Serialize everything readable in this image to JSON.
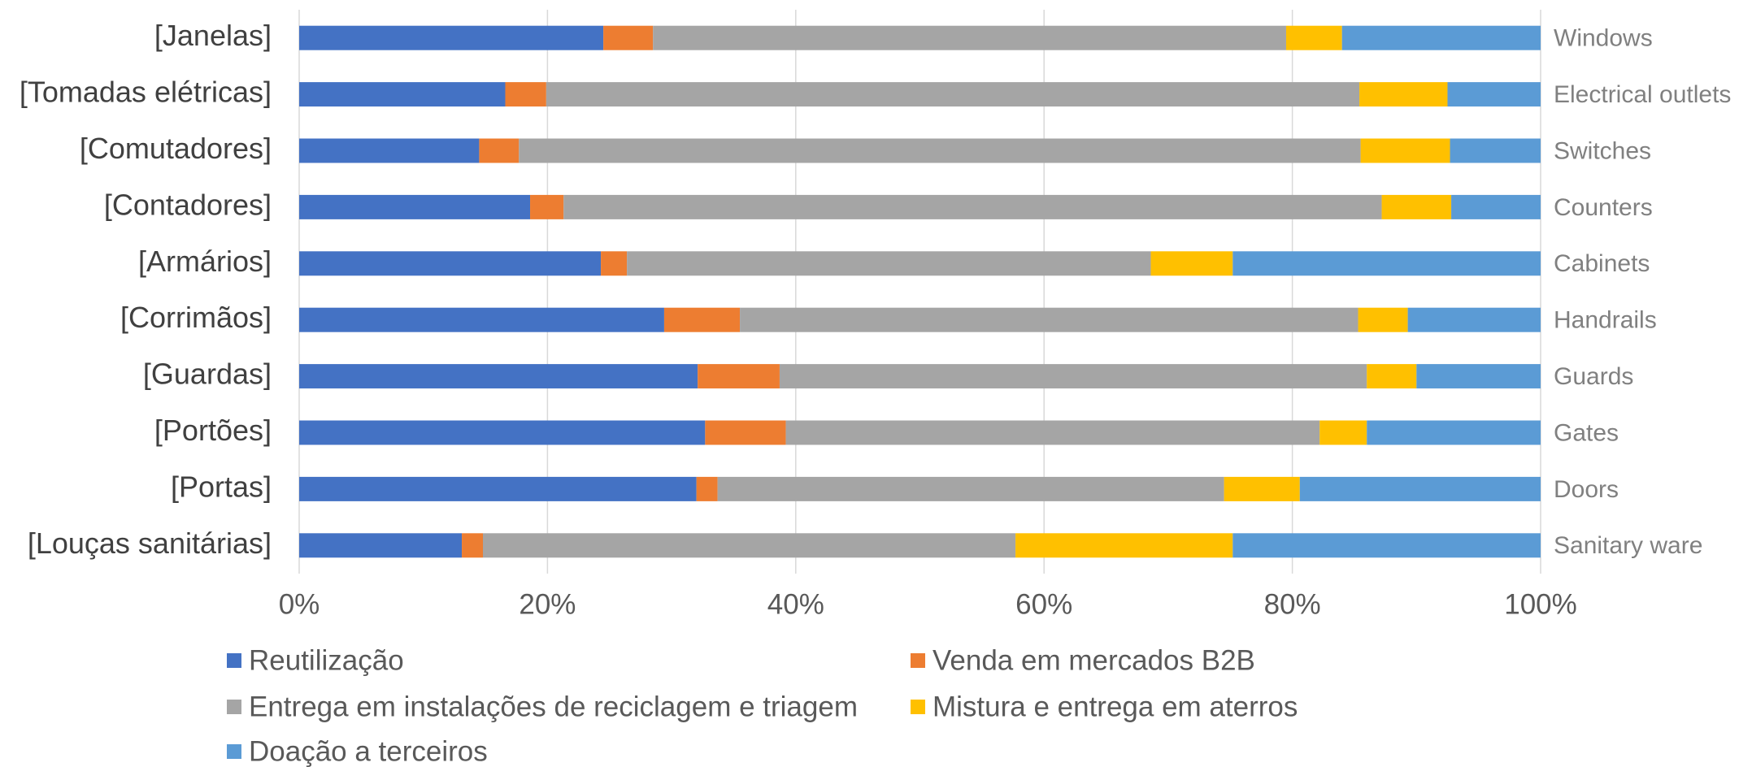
{
  "chart_data": {
    "type": "stacked_bar_horizontal",
    "categories": [
      "[Janelas]",
      "[Tomadas elétricas]",
      "[Comutadores]",
      "[Contadores]",
      "[Armários]",
      "[Corrimãos]",
      "[Guardas]",
      "[Portões]",
      "[Portas]",
      "[Louças sanitárias]"
    ],
    "right_labels": [
      "Windows",
      "Electrical outlets",
      "Switches",
      "Counters",
      "Cabinets",
      "Handrails",
      "Guards",
      "Gates",
      "Doors",
      "Sanitary ware"
    ],
    "series": [
      {
        "name": "Reutilização",
        "color": "#4472c4",
        "values": [
          24.5,
          16.6,
          14.5,
          18.6,
          24.3,
          29.4,
          32.1,
          32.7,
          32.0,
          13.1
        ]
      },
      {
        "name": "Venda em mercados B2B",
        "color": "#ed7d31",
        "values": [
          4.0,
          3.3,
          3.2,
          2.7,
          2.1,
          6.1,
          6.6,
          6.5,
          1.7,
          1.7
        ]
      },
      {
        "name": "Entrega em instalações de reciclagem e triagem",
        "color": "#a5a5a5",
        "values": [
          51.0,
          65.5,
          67.8,
          65.9,
          42.2,
          49.8,
          47.3,
          43.0,
          40.8,
          42.9
        ]
      },
      {
        "name": "Mistura e entrega em aterros",
        "color": "#ffc000",
        "values": [
          4.5,
          7.1,
          7.2,
          5.6,
          6.6,
          4.0,
          4.0,
          3.8,
          6.1,
          17.5
        ]
      },
      {
        "name": "Doação a terceiros",
        "color": "#5b9bd5",
        "values": [
          16.0,
          7.5,
          7.3,
          7.2,
          24.8,
          10.7,
          10.0,
          14.0,
          19.4,
          24.8
        ]
      }
    ],
    "xlim": [
      0,
      100
    ],
    "xticks": [
      {
        "value": 0,
        "label": "0%"
      },
      {
        "value": 20,
        "label": "20%"
      },
      {
        "value": 40,
        "label": "40%"
      },
      {
        "value": 60,
        "label": "60%"
      },
      {
        "value": 80,
        "label": "80%"
      },
      {
        "value": 100,
        "label": "100%"
      }
    ],
    "grid": true,
    "legend": "bottom"
  }
}
